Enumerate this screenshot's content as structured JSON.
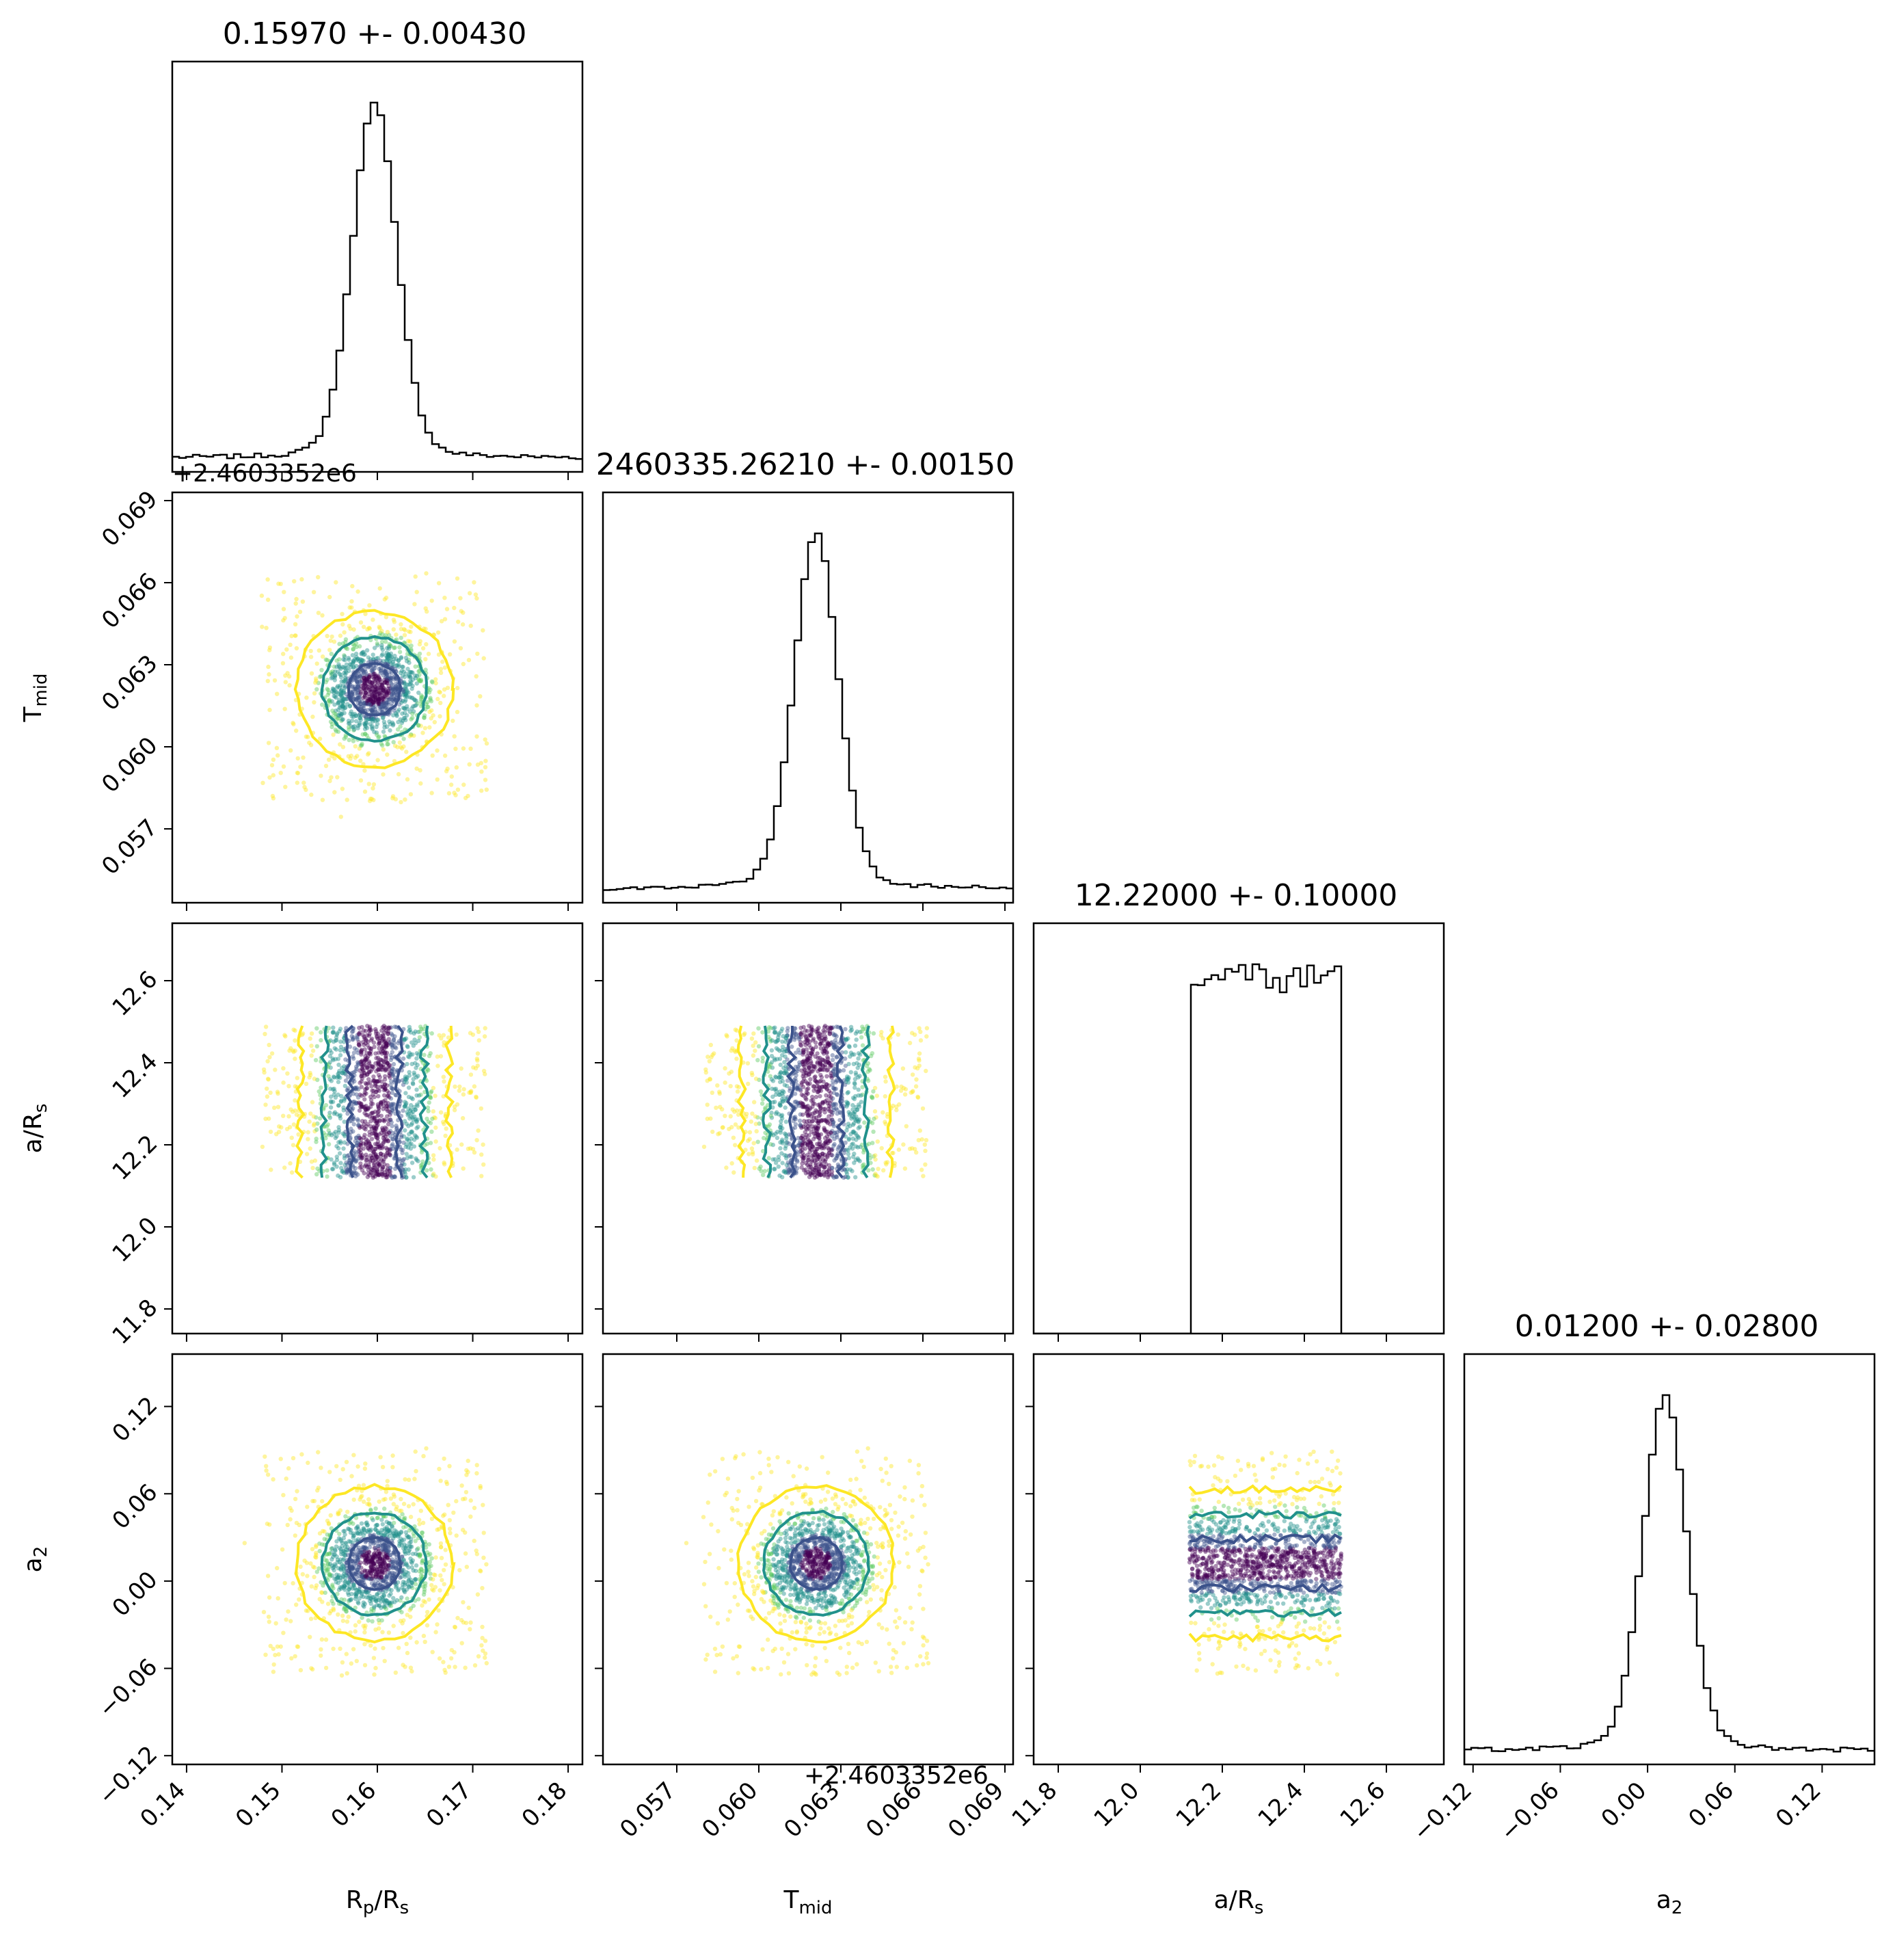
{
  "chart_data": {
    "type": "corner",
    "parameters": [
      {
        "key": "rp",
        "label": "R",
        "label_sub": "p",
        "label_tail": "/R",
        "label_sub2": "s",
        "range": [
          0.1385,
          0.1815
        ],
        "ticks": [
          0.14,
          0.15,
          0.16,
          0.17,
          0.18
        ],
        "tick_labels": [
          "0.14",
          "0.15",
          "0.16",
          "0.17",
          "0.18"
        ],
        "median": 0.1597,
        "sigma": 0.0043,
        "title": "0.15970 +- 0.00430",
        "offset": ""
      },
      {
        "key": "tmid",
        "label": "T",
        "label_sub": "mid",
        "label_tail": "",
        "label_sub2": "",
        "range": [
          0.0543,
          0.0693
        ],
        "ticks": [
          0.057,
          0.06,
          0.063,
          0.066,
          0.069
        ],
        "tick_labels": [
          "0.057",
          "0.060",
          "0.063",
          "0.066",
          "0.069"
        ],
        "median": 0.0621,
        "sigma": 0.0015,
        "title": "2460335.26210 +- 0.00150",
        "offset": "+2.4603352e6"
      },
      {
        "key": "ars",
        "label": "a/R",
        "label_sub": "s",
        "label_tail": "",
        "label_sub2": "",
        "range": [
          11.74,
          12.74
        ],
        "ticks": [
          11.8,
          12.0,
          12.2,
          12.4,
          12.6
        ],
        "tick_labels": [
          "11.8",
          "12.0",
          "12.2",
          "12.4",
          "12.6"
        ],
        "median": 12.22,
        "sigma": 0.1,
        "title": "12.22000 +- 0.10000",
        "offset": "",
        "uniform": [
          12.12,
          12.49
        ]
      },
      {
        "key": "a2",
        "label": "a",
        "label_sub": "2",
        "label_tail": "",
        "label_sub2": "",
        "range": [
          -0.126,
          0.156
        ],
        "ticks": [
          -0.12,
          -0.06,
          0.0,
          0.06,
          0.12
        ],
        "tick_labels": [
          "−0.12",
          "−0.06",
          "0.00",
          "0.06",
          "0.12"
        ],
        "median": 0.012,
        "sigma": 0.028,
        "title": "0.01200 +- 0.02800",
        "offset": ""
      }
    ],
    "contour_levels_sigma": [
      1,
      2,
      3
    ],
    "contour_colors": [
      "#3b528b",
      "#21918c",
      "#fde725"
    ],
    "point_colors": [
      "#440154",
      "#3b528b",
      "#21918c",
      "#5ec962",
      "#fde725"
    ],
    "histogram_color": "#000000",
    "histogram_shape": "peaked posterior with broad uniform background tails",
    "grid": false
  }
}
